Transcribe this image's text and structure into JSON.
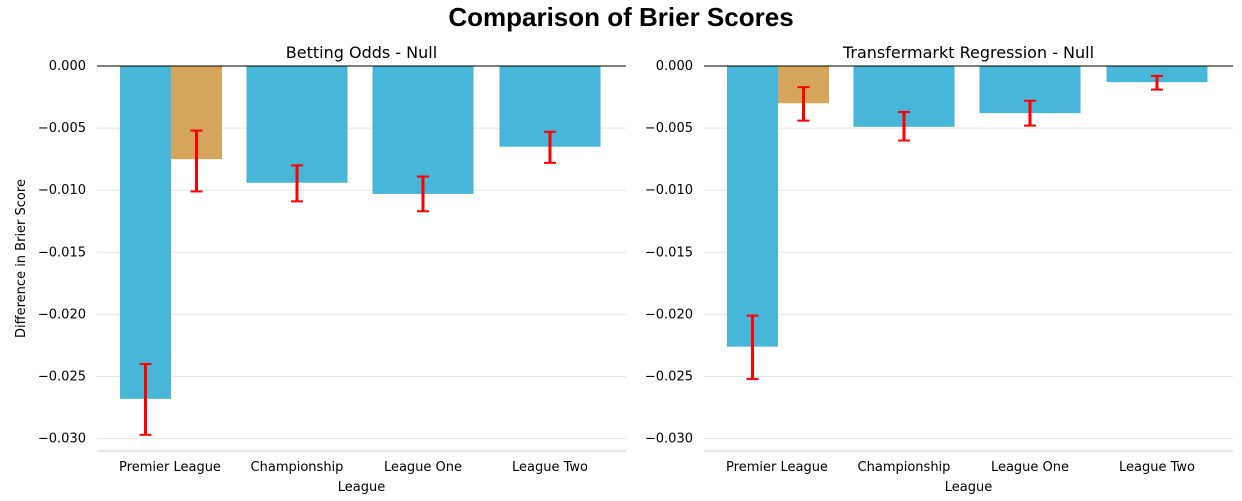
{
  "title": "Comparison of Brier Scores",
  "colors": {
    "primary": "#48b6d8",
    "secondary": "#d4a55a",
    "error": "#ff0000",
    "grid": "#e6e6e6"
  },
  "chart_data": [
    {
      "type": "bar",
      "title": "Betting Odds - Null",
      "xlabel": "League",
      "ylabel": "Difference in Brier Score",
      "ylim": [
        -0.031,
        0.0
      ],
      "yticks": [
        0.0,
        -0.005,
        -0.01,
        -0.015,
        -0.02,
        -0.025,
        -0.03
      ],
      "ytick_labels": [
        "0.000",
        "−0.005",
        "−0.010",
        "−0.015",
        "−0.020",
        "−0.025",
        "−0.030"
      ],
      "categories": [
        "Premier League",
        "Championship",
        "League One",
        "League Two"
      ],
      "bars": [
        {
          "category": "Premier League",
          "series": "primary",
          "value": -0.0268,
          "err_low": -0.0297,
          "err_high": -0.024
        },
        {
          "category": "Premier League",
          "series": "secondary",
          "value": -0.0075,
          "err_low": -0.0101,
          "err_high": -0.0052
        },
        {
          "category": "Championship",
          "series": "primary",
          "value": -0.0094,
          "err_low": -0.0109,
          "err_high": -0.008
        },
        {
          "category": "League One",
          "series": "primary",
          "value": -0.0103,
          "err_low": -0.0117,
          "err_high": -0.0089
        },
        {
          "category": "League Two",
          "series": "primary",
          "value": -0.0065,
          "err_low": -0.0078,
          "err_high": -0.0053
        }
      ]
    },
    {
      "type": "bar",
      "title": "Transfermarkt Regression - Null",
      "xlabel": "League",
      "ylabel": "",
      "ylim": [
        -0.031,
        0.0
      ],
      "yticks": [
        0.0,
        -0.005,
        -0.01,
        -0.015,
        -0.02,
        -0.025,
        -0.03
      ],
      "ytick_labels": [
        "0.000",
        "−0.005",
        "−0.010",
        "−0.015",
        "−0.020",
        "−0.025",
        "−0.030"
      ],
      "categories": [
        "Premier League",
        "Championship",
        "League One",
        "League Two"
      ],
      "bars": [
        {
          "category": "Premier League",
          "series": "primary",
          "value": -0.0226,
          "err_low": -0.0252,
          "err_high": -0.0201
        },
        {
          "category": "Premier League",
          "series": "secondary",
          "value": -0.003,
          "err_low": -0.0044,
          "err_high": -0.0017
        },
        {
          "category": "Championship",
          "series": "primary",
          "value": -0.0049,
          "err_low": -0.006,
          "err_high": -0.0037
        },
        {
          "category": "League One",
          "series": "primary",
          "value": -0.0038,
          "err_low": -0.0048,
          "err_high": -0.0028
        },
        {
          "category": "League Two",
          "series": "primary",
          "value": -0.0013,
          "err_low": -0.0019,
          "err_high": -0.0008
        }
      ]
    }
  ]
}
